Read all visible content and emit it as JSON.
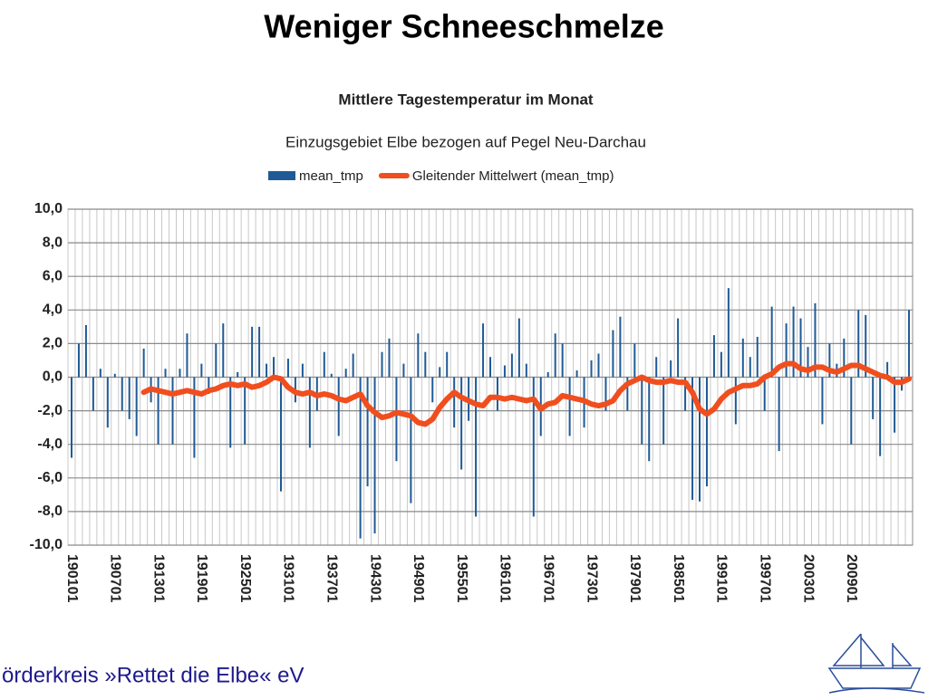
{
  "header": {
    "title": "Weniger Schneeschmelze"
  },
  "footer": {
    "text": "örderkreis »Rettet die Elbe« eV"
  },
  "chart_data": {
    "type": "bar",
    "title": "Mittlere Tagestemperatur im Monat",
    "subtitle": "Einzugsgebiet Elbe bezogen auf Pegel Neu-Darchau",
    "categories": [
      "190101",
      null,
      null,
      null,
      null,
      null,
      "190701",
      null,
      null,
      null,
      null,
      null,
      "191301",
      null,
      null,
      null,
      null,
      null,
      "191901",
      null,
      null,
      null,
      null,
      null,
      "192501",
      null,
      null,
      null,
      null,
      null,
      "193101",
      null,
      null,
      null,
      null,
      null,
      "193701",
      null,
      null,
      null,
      null,
      null,
      "194301",
      null,
      null,
      null,
      null,
      null,
      "194901",
      null,
      null,
      null,
      null,
      null,
      "195501",
      null,
      null,
      null,
      null,
      null,
      "196101",
      null,
      null,
      null,
      null,
      null,
      "196701",
      null,
      null,
      null,
      null,
      null,
      "197301",
      null,
      null,
      null,
      null,
      null,
      "197901",
      null,
      null,
      null,
      null,
      null,
      "198501",
      null,
      null,
      null,
      null,
      null,
      "199101",
      null,
      null,
      null,
      null,
      null,
      "199701",
      null,
      null,
      null,
      null,
      null,
      "200301",
      null,
      null,
      null,
      null,
      null,
      "200901",
      null,
      null,
      null,
      null,
      null,
      null,
      null,
      null
    ],
    "series": [
      {
        "name": "mean_tmp",
        "color": "#1f5a96",
        "type": "bar",
        "values": [
          -4.8,
          2.0,
          3.1,
          -2.0,
          0.5,
          -3.0,
          0.2,
          -2.0,
          -2.5,
          -3.5,
          1.7,
          -1.5,
          -4.0,
          0.5,
          -4.0,
          0.5,
          2.6,
          -4.8,
          0.8,
          -1.0,
          2.0,
          3.2,
          -4.2,
          0.3,
          -4.0,
          3.0,
          3.0,
          0.8,
          1.2,
          -6.8,
          1.1,
          -1.5,
          0.8,
          -4.2,
          -2.0,
          1.5,
          0.2,
          -3.5,
          0.5,
          1.4,
          -9.6,
          -6.5,
          -9.3,
          1.5,
          2.3,
          -5.0,
          0.8,
          -7.5,
          2.6,
          1.5,
          -1.5,
          0.6,
          1.5,
          -3.0,
          -5.5,
          -2.6,
          -8.3,
          3.2,
          1.2,
          -2.0,
          0.7,
          1.4,
          3.5,
          0.8,
          -8.3,
          -3.5,
          0.3,
          2.6,
          2.0,
          -3.5,
          0.4,
          -3.0,
          1.0,
          1.4,
          -2.0,
          2.8,
          3.6,
          -2.0,
          2.0,
          -4.0,
          -5.0,
          1.2,
          -4.0,
          1.0,
          3.5,
          -2.0,
          -7.3,
          -7.4,
          -6.5,
          2.5,
          1.5,
          5.3,
          -2.8,
          2.3,
          1.2,
          2.4,
          -2.0,
          4.2,
          -4.4,
          3.2,
          4.2,
          3.5,
          1.8,
          4.4,
          -2.8,
          2.0,
          0.8,
          2.3,
          -4.0,
          4.0,
          3.7,
          -2.5,
          -4.7,
          0.9,
          -3.3,
          -0.8,
          4.0
        ]
      },
      {
        "name": "Gleitender Mittelwert (mean_tmp)",
        "color": "#f04e1e",
        "type": "line",
        "values": [
          null,
          null,
          null,
          null,
          null,
          null,
          null,
          null,
          null,
          null,
          -0.9,
          -0.7,
          -0.8,
          -0.9,
          -1.0,
          -0.9,
          -0.8,
          -0.9,
          -1.0,
          -0.8,
          -0.7,
          -0.5,
          -0.4,
          -0.5,
          -0.4,
          -0.6,
          -0.5,
          -0.3,
          0.0,
          -0.1,
          -0.6,
          -0.9,
          -1.0,
          -0.9,
          -1.1,
          -1.0,
          -1.1,
          -1.3,
          -1.4,
          -1.2,
          -1.0,
          -1.7,
          -2.1,
          -2.4,
          -2.3,
          -2.1,
          -2.2,
          -2.3,
          -2.7,
          -2.8,
          -2.5,
          -1.8,
          -1.3,
          -0.9,
          -1.2,
          -1.4,
          -1.6,
          -1.7,
          -1.2,
          -1.2,
          -1.3,
          -1.2,
          -1.3,
          -1.4,
          -1.3,
          -1.9,
          -1.6,
          -1.5,
          -1.1,
          -1.2,
          -1.3,
          -1.4,
          -1.6,
          -1.7,
          -1.6,
          -1.4,
          -0.8,
          -0.4,
          -0.2,
          0.0,
          -0.2,
          -0.3,
          -0.3,
          -0.2,
          -0.3,
          -0.3,
          -0.9,
          -1.9,
          -2.2,
          -1.9,
          -1.3,
          -0.9,
          -0.7,
          -0.5,
          -0.5,
          -0.4,
          0.0,
          0.2,
          0.6,
          0.8,
          0.8,
          0.5,
          0.4,
          0.6,
          0.6,
          0.4,
          0.3,
          0.5,
          0.7,
          0.7,
          0.5,
          0.3,
          0.1,
          0.0,
          -0.3,
          -0.3,
          -0.1
        ]
      }
    ],
    "ylim": [
      -10,
      10
    ],
    "yticks": [
      {
        "value": -10,
        "label": "-10,0"
      },
      {
        "value": -8,
        "label": "-8,0"
      },
      {
        "value": -6,
        "label": "-6,0"
      },
      {
        "value": -4,
        "label": "-4,0"
      },
      {
        "value": -2,
        "label": "-2,0"
      },
      {
        "value": 0,
        "label": "0,0"
      },
      {
        "value": 2,
        "label": "2,0"
      },
      {
        "value": 4,
        "label": "4,0"
      },
      {
        "value": 6,
        "label": "6,0"
      },
      {
        "value": 8,
        "label": "8,0"
      },
      {
        "value": 10,
        "label": "10,0"
      }
    ],
    "grid": true
  }
}
